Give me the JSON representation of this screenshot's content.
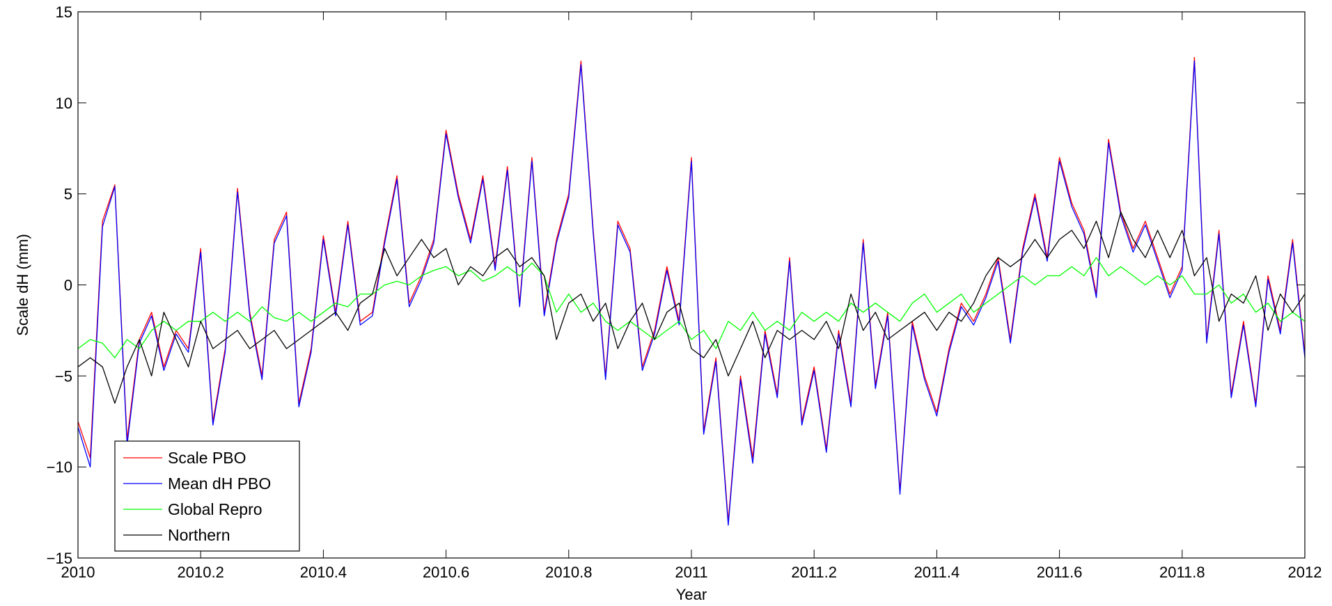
{
  "chart_data": {
    "type": "line",
    "xlabel": "Year",
    "ylabel": "Scale dH (mm)",
    "xlim": [
      2010,
      2012
    ],
    "ylim": [
      -15,
      15
    ],
    "x_ticks": [
      2010,
      2010.2,
      2010.4,
      2010.6,
      2010.8,
      2011,
      2011.2,
      2011.4,
      2011.6,
      2011.8,
      2012
    ],
    "x_tick_labels": [
      "2010",
      "2010.2",
      "2010.4",
      "2010.6",
      "2010.8",
      "2011",
      "2011.2",
      "2011.4",
      "2011.6",
      "2011.8",
      "2012"
    ],
    "y_ticks": [
      -15,
      -10,
      -5,
      0,
      5,
      10,
      15
    ],
    "y_tick_labels": [
      "−15",
      "−10",
      "−5",
      "0",
      "5",
      "10",
      "15"
    ],
    "grid": false,
    "legend_position": "bottom-left",
    "series": [
      {
        "name": "Scale PBO",
        "color": "#ff0000",
        "x": [
          2010,
          2010.02,
          2010.04,
          2010.06,
          2010.08,
          2010.1,
          2010.12,
          2010.14,
          2010.16,
          2010.18,
          2010.2,
          2010.22,
          2010.24,
          2010.26,
          2010.28,
          2010.3,
          2010.32,
          2010.34,
          2010.36,
          2010.38,
          2010.4,
          2010.42,
          2010.44,
          2010.46,
          2010.48,
          2010.5,
          2010.52,
          2010.54,
          2010.56,
          2010.58,
          2010.6,
          2010.62,
          2010.64,
          2010.66,
          2010.68,
          2010.7,
          2010.72,
          2010.74,
          2010.76,
          2010.78,
          2010.8,
          2010.82,
          2010.84,
          2010.86,
          2010.88,
          2010.9,
          2010.92,
          2010.94,
          2010.96,
          2010.98,
          2011,
          2011.02,
          2011.04,
          2011.06,
          2011.08,
          2011.1,
          2011.12,
          2011.14,
          2011.16,
          2011.18,
          2011.2,
          2011.22,
          2011.24,
          2011.26,
          2011.28,
          2011.3,
          2011.32,
          2011.34,
          2011.36,
          2011.38,
          2011.4,
          2011.42,
          2011.44,
          2011.46,
          2011.48,
          2011.5,
          2011.52,
          2011.54,
          2011.56,
          2011.58,
          2011.6,
          2011.62,
          2011.64,
          2011.66,
          2011.68,
          2011.7,
          2011.72,
          2011.74,
          2011.76,
          2011.78,
          2011.8,
          2011.82,
          2011.84,
          2011.86,
          2011.88,
          2011.9,
          2011.92,
          2011.94,
          2011.96,
          2011.98,
          2012
        ],
        "values": [
          -7.5,
          -9.5,
          3.5,
          5.5,
          -8.5,
          -3.0,
          -1.5,
          -4.5,
          -2.5,
          -3.5,
          2.0,
          -7.5,
          -3.5,
          5.3,
          -1.5,
          -5.0,
          2.5,
          4.0,
          -6.5,
          -3.5,
          2.7,
          -1.5,
          3.5,
          -2.0,
          -1.5,
          2.5,
          6.0,
          -1.0,
          0.5,
          2.5,
          8.5,
          5.0,
          2.5,
          6.0,
          1.0,
          6.5,
          -1.0,
          7.0,
          -1.5,
          2.5,
          5.0,
          12.3,
          3.0,
          -5.0,
          3.5,
          2.0,
          -4.5,
          -2.5,
          1.0,
          -2.0,
          7.0,
          -8.0,
          -4.0,
          -13.0,
          -5.0,
          -9.5,
          -2.5,
          -6.0,
          1.5,
          -7.5,
          -4.5,
          -9.0,
          -2.5,
          -6.5,
          2.5,
          -5.5,
          -1.5,
          -11.3,
          -2.0,
          -5.0,
          -7.0,
          -3.5,
          -1.0,
          -2.0,
          -0.5,
          1.5,
          -3.0,
          2.0,
          5.0,
          1.5,
          7.0,
          4.5,
          3.0,
          -0.5,
          8.0,
          4.0,
          2.0,
          3.5,
          1.5,
          -0.5,
          1.0,
          12.5,
          -3.0,
          3.0,
          -6.0,
          -2.0,
          -6.5,
          0.5,
          -2.5,
          2.5,
          -3.8
        ]
      },
      {
        "name": "Mean dH PBO",
        "color": "#0000ff",
        "x": [
          2010,
          2010.02,
          2010.04,
          2010.06,
          2010.08,
          2010.1,
          2010.12,
          2010.14,
          2010.16,
          2010.18,
          2010.2,
          2010.22,
          2010.24,
          2010.26,
          2010.28,
          2010.3,
          2010.32,
          2010.34,
          2010.36,
          2010.38,
          2010.4,
          2010.42,
          2010.44,
          2010.46,
          2010.48,
          2010.5,
          2010.52,
          2010.54,
          2010.56,
          2010.58,
          2010.6,
          2010.62,
          2010.64,
          2010.66,
          2010.68,
          2010.7,
          2010.72,
          2010.74,
          2010.76,
          2010.78,
          2010.8,
          2010.82,
          2010.84,
          2010.86,
          2010.88,
          2010.9,
          2010.92,
          2010.94,
          2010.96,
          2010.98,
          2011,
          2011.02,
          2011.04,
          2011.06,
          2011.08,
          2011.1,
          2011.12,
          2011.14,
          2011.16,
          2011.18,
          2011.2,
          2011.22,
          2011.24,
          2011.26,
          2011.28,
          2011.3,
          2011.32,
          2011.34,
          2011.36,
          2011.38,
          2011.4,
          2011.42,
          2011.44,
          2011.46,
          2011.48,
          2011.5,
          2011.52,
          2011.54,
          2011.56,
          2011.58,
          2011.6,
          2011.62,
          2011.64,
          2011.66,
          2011.68,
          2011.7,
          2011.72,
          2011.74,
          2011.76,
          2011.78,
          2011.8,
          2011.82,
          2011.84,
          2011.86,
          2011.88,
          2011.9,
          2011.92,
          2011.94,
          2011.96,
          2011.98,
          2012
        ],
        "values": [
          -7.8,
          -10.0,
          3.2,
          5.4,
          -8.8,
          -3.2,
          -1.7,
          -4.7,
          -2.7,
          -3.7,
          1.8,
          -7.7,
          -3.7,
          5.1,
          -1.7,
          -5.2,
          2.3,
          3.8,
          -6.7,
          -3.7,
          2.5,
          -1.7,
          3.3,
          -2.2,
          -1.7,
          2.3,
          5.8,
          -1.2,
          0.3,
          2.3,
          8.3,
          4.8,
          2.3,
          5.8,
          0.8,
          6.3,
          -1.2,
          6.8,
          -1.7,
          2.3,
          4.8,
          12.1,
          2.8,
          -5.2,
          3.3,
          1.8,
          -4.7,
          -2.7,
          0.8,
          -2.2,
          6.8,
          -8.2,
          -4.2,
          -13.2,
          -5.2,
          -9.8,
          -2.7,
          -6.2,
          1.3,
          -7.7,
          -4.7,
          -9.2,
          -2.7,
          -6.7,
          2.3,
          -5.7,
          -1.7,
          -11.5,
          -2.2,
          -5.2,
          -7.2,
          -3.7,
          -1.2,
          -2.2,
          -0.7,
          1.3,
          -3.2,
          1.8,
          4.8,
          1.3,
          6.8,
          4.3,
          2.8,
          -0.7,
          7.8,
          3.8,
          1.8,
          3.3,
          1.3,
          -0.7,
          0.8,
          12.3,
          -3.2,
          2.8,
          -6.2,
          -2.2,
          -6.7,
          0.3,
          -2.7,
          2.3,
          -4.0
        ]
      },
      {
        "name": "Global Repro",
        "color": "#00ff00",
        "x": [
          2010,
          2010.02,
          2010.04,
          2010.06,
          2010.08,
          2010.1,
          2010.12,
          2010.14,
          2010.16,
          2010.18,
          2010.2,
          2010.22,
          2010.24,
          2010.26,
          2010.28,
          2010.3,
          2010.32,
          2010.34,
          2010.36,
          2010.38,
          2010.4,
          2010.42,
          2010.44,
          2010.46,
          2010.48,
          2010.5,
          2010.52,
          2010.54,
          2010.56,
          2010.58,
          2010.6,
          2010.62,
          2010.64,
          2010.66,
          2010.68,
          2010.7,
          2010.72,
          2010.74,
          2010.76,
          2010.78,
          2010.8,
          2010.82,
          2010.84,
          2010.86,
          2010.88,
          2010.9,
          2010.92,
          2010.94,
          2010.96,
          2010.98,
          2011,
          2011.02,
          2011.04,
          2011.06,
          2011.08,
          2011.1,
          2011.12,
          2011.14,
          2011.16,
          2011.18,
          2011.2,
          2011.22,
          2011.24,
          2011.26,
          2011.28,
          2011.3,
          2011.32,
          2011.34,
          2011.36,
          2011.38,
          2011.4,
          2011.42,
          2011.44,
          2011.46,
          2011.48,
          2011.5,
          2011.52,
          2011.54,
          2011.56,
          2011.58,
          2011.6,
          2011.62,
          2011.64,
          2011.66,
          2011.68,
          2011.7,
          2011.72,
          2011.74,
          2011.76,
          2011.78,
          2011.8,
          2011.82,
          2011.84,
          2011.86,
          2011.88,
          2011.9,
          2011.92,
          2011.94,
          2011.96,
          2011.98,
          2012
        ],
        "values": [
          -3.5,
          -3.0,
          -3.2,
          -4.0,
          -3.0,
          -3.5,
          -2.5,
          -2.0,
          -2.5,
          -2.0,
          -2.0,
          -1.5,
          -2.0,
          -1.5,
          -2.0,
          -1.2,
          -1.8,
          -2.0,
          -1.5,
          -2.0,
          -1.5,
          -1.0,
          -1.2,
          -0.5,
          -0.5,
          0.0,
          0.2,
          0.0,
          0.5,
          0.8,
          1.0,
          0.5,
          0.8,
          0.2,
          0.5,
          1.0,
          0.5,
          1.2,
          0.5,
          -1.5,
          -0.5,
          -1.5,
          -1.0,
          -2.0,
          -2.5,
          -2.0,
          -2.5,
          -3.0,
          -2.5,
          -2.0,
          -3.0,
          -2.5,
          -3.5,
          -2.0,
          -2.5,
          -1.5,
          -2.5,
          -2.0,
          -2.5,
          -1.5,
          -2.0,
          -1.5,
          -2.0,
          -1.0,
          -1.5,
          -1.0,
          -1.5,
          -2.0,
          -1.0,
          -0.5,
          -1.5,
          -1.0,
          -0.5,
          -1.5,
          -1.0,
          -0.5,
          0.0,
          0.5,
          0.0,
          0.5,
          0.5,
          1.0,
          0.5,
          1.5,
          0.5,
          1.0,
          0.5,
          0.0,
          0.5,
          0.0,
          0.5,
          -0.5,
          -0.5,
          0.0,
          -1.0,
          -0.5,
          -1.5,
          -1.0,
          -2.0,
          -1.5,
          -2.0
        ]
      },
      {
        "name": "Northern",
        "color": "#000000",
        "x": [
          2010,
          2010.02,
          2010.04,
          2010.06,
          2010.08,
          2010.1,
          2010.12,
          2010.14,
          2010.16,
          2010.18,
          2010.2,
          2010.22,
          2010.24,
          2010.26,
          2010.28,
          2010.3,
          2010.32,
          2010.34,
          2010.36,
          2010.38,
          2010.4,
          2010.42,
          2010.44,
          2010.46,
          2010.48,
          2010.5,
          2010.52,
          2010.54,
          2010.56,
          2010.58,
          2010.6,
          2010.62,
          2010.64,
          2010.66,
          2010.68,
          2010.7,
          2010.72,
          2010.74,
          2010.76,
          2010.78,
          2010.8,
          2010.82,
          2010.84,
          2010.86,
          2010.88,
          2010.9,
          2010.92,
          2010.94,
          2010.96,
          2010.98,
          2011,
          2011.02,
          2011.04,
          2011.06,
          2011.08,
          2011.1,
          2011.12,
          2011.14,
          2011.16,
          2011.18,
          2011.2,
          2011.22,
          2011.24,
          2011.26,
          2011.28,
          2011.3,
          2011.32,
          2011.34,
          2011.36,
          2011.38,
          2011.4,
          2011.42,
          2011.44,
          2011.46,
          2011.48,
          2011.5,
          2011.52,
          2011.54,
          2011.56,
          2011.58,
          2011.6,
          2011.62,
          2011.64,
          2011.66,
          2011.68,
          2011.7,
          2011.72,
          2011.74,
          2011.76,
          2011.78,
          2011.8,
          2011.82,
          2011.84,
          2011.86,
          2011.88,
          2011.9,
          2011.92,
          2011.94,
          2011.96,
          2011.98,
          2012
        ],
        "values": [
          -4.5,
          -4.0,
          -4.5,
          -6.5,
          -4.5,
          -3.0,
          -5.0,
          -1.5,
          -3.0,
          -4.5,
          -2.0,
          -3.5,
          -3.0,
          -2.5,
          -3.5,
          -3.0,
          -2.5,
          -3.5,
          -3.0,
          -2.5,
          -2.0,
          -1.5,
          -2.5,
          -1.0,
          -0.5,
          2.0,
          0.5,
          1.5,
          2.5,
          1.5,
          2.0,
          0.0,
          1.0,
          0.5,
          1.5,
          2.0,
          1.0,
          1.5,
          0.5,
          -3.0,
          -1.0,
          -0.5,
          -2.0,
          -1.0,
          -3.5,
          -2.0,
          -1.0,
          -3.0,
          -1.5,
          -1.0,
          -3.5,
          -4.0,
          -3.0,
          -5.0,
          -3.5,
          -2.0,
          -4.0,
          -2.5,
          -3.0,
          -2.5,
          -3.0,
          -2.0,
          -3.5,
          -0.5,
          -2.5,
          -1.5,
          -3.0,
          -2.5,
          -2.0,
          -1.5,
          -2.5,
          -1.5,
          -2.0,
          -1.0,
          0.5,
          1.5,
          1.0,
          1.5,
          2.5,
          1.5,
          2.5,
          3.0,
          2.0,
          3.5,
          1.5,
          4.0,
          2.5,
          1.5,
          3.0,
          1.5,
          3.0,
          0.5,
          1.5,
          -2.0,
          -0.5,
          -1.0,
          0.5,
          -2.5,
          -0.5,
          -1.5,
          -0.5
        ]
      }
    ]
  }
}
